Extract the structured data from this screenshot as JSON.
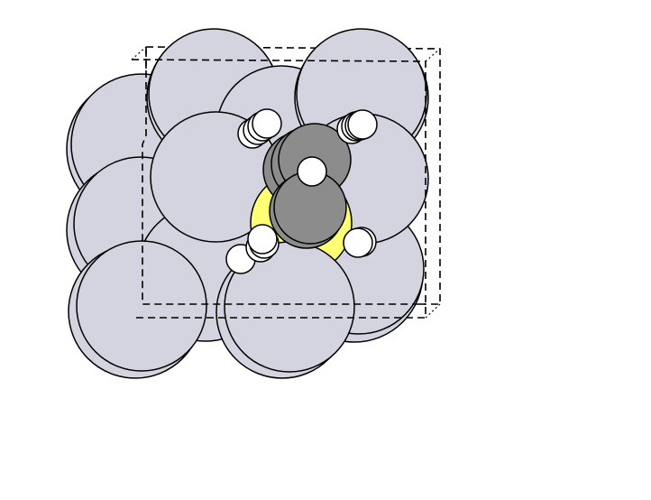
{
  "figure": {
    "type": "ball-and-stick molecular render (space-filling atoms)",
    "background": "#ffffff"
  },
  "elements": {
    "slab": {
      "color": "#d4d4e0",
      "role": "surface atoms"
    },
    "sulfur": {
      "color": "#ffff73",
      "role": "adsorbed atom under methyl groups"
    },
    "carbon": {
      "color": "#8c8c8c",
      "role": "molecule atoms"
    },
    "hydrogen": {
      "color": "#ffffff",
      "role": "terminal atoms"
    }
  },
  "unit_cell": {
    "style": "dashed",
    "stroke": "#000000"
  }
}
